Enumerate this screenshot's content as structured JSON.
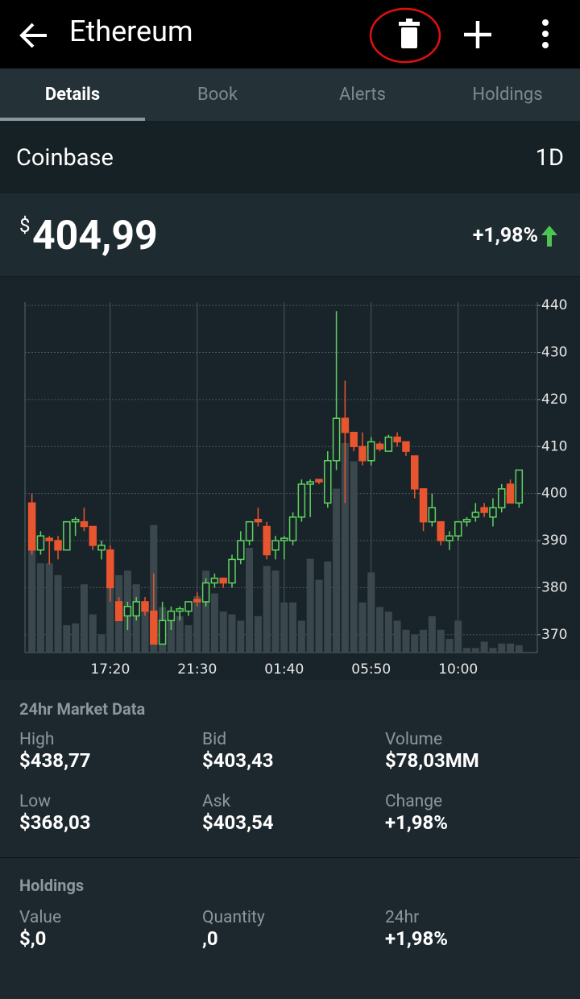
{
  "header": {
    "title": "Ethereum"
  },
  "tabs": [
    "Details",
    "Book",
    "Alerts",
    "Holdings"
  ],
  "exchange": {
    "name": "Coinbase",
    "period": "1D"
  },
  "price": {
    "currency": "$",
    "value": "404,99",
    "change": "+1,98%"
  },
  "chart_data": {
    "type": "candlestick",
    "up_color": "#5ed35e",
    "down_color": "#e8552f",
    "volume_color": "#3a474d",
    "xlim": [
      -0.8,
      58.1
    ],
    "xticks": [
      {
        "value": 9,
        "label": "17:20"
      },
      {
        "value": 19,
        "label": "21:30"
      },
      {
        "value": 29,
        "label": "01:40"
      },
      {
        "value": 39,
        "label": "05:50"
      },
      {
        "value": 49,
        "label": "10:00"
      }
    ],
    "ylim": [
      366.2,
      440.7
    ],
    "yticks": [
      370,
      380,
      390,
      400,
      410,
      420,
      430,
      440
    ],
    "grid": true,
    "open": [
      398,
      388,
      390.5,
      390,
      388,
      394,
      394,
      393,
      388,
      388,
      377,
      374,
      374,
      377,
      375,
      368,
      373,
      375,
      375,
      377.5,
      377,
      381,
      382,
      381,
      386,
      390,
      394.5,
      393,
      388,
      390,
      390,
      395,
      402,
      403,
      398,
      407,
      416,
      413,
      410,
      407,
      410.5,
      409,
      412,
      411,
      408,
      401,
      394,
      394,
      390,
      391,
      394,
      395,
      397,
      395,
      397,
      402,
      398
    ],
    "high": [
      400,
      392,
      391,
      391,
      394,
      395,
      397,
      393,
      390,
      389,
      378,
      377,
      378,
      378,
      383,
      377,
      376,
      376,
      377,
      379,
      382,
      383,
      382,
      387,
      392,
      394,
      397,
      394,
      391,
      391,
      396,
      403,
      403,
      403,
      409,
      438.77,
      424,
      413,
      413,
      412,
      411,
      412.5,
      413,
      411,
      408,
      401,
      400,
      394,
      392,
      394,
      395,
      398,
      398,
      399,
      402,
      403,
      405
    ],
    "low": [
      387,
      387,
      385,
      386,
      388,
      391,
      392,
      388,
      386,
      377,
      373,
      371,
      373,
      374,
      368,
      368,
      371,
      373,
      374,
      376,
      376,
      380,
      380,
      380,
      385,
      389,
      393,
      386,
      386,
      386,
      389,
      394,
      395,
      402,
      397,
      405,
      398,
      409,
      406,
      406,
      409,
      409,
      410,
      408,
      399,
      392,
      393,
      389,
      388,
      390,
      393,
      394,
      395,
      393,
      396,
      398,
      397
    ],
    "close": [
      388,
      391,
      390,
      388,
      394,
      394.5,
      393,
      389,
      389,
      380,
      373,
      376,
      377,
      375,
      368,
      373,
      375,
      375.5,
      377,
      377,
      381,
      382,
      381,
      386,
      390,
      394,
      394,
      387,
      390,
      390.5,
      395,
      402,
      402.5,
      402.5,
      407,
      416,
      413,
      410,
      407,
      411,
      409.5,
      412,
      411,
      409,
      401,
      394,
      397,
      390,
      391,
      394,
      394.5,
      396,
      396,
      397,
      401,
      398,
      405
    ],
    "volume": [
      120,
      98,
      98,
      85,
      30,
      32,
      75,
      42,
      20,
      90,
      85,
      90,
      75,
      55,
      140,
      50,
      45,
      40,
      30,
      62,
      90,
      65,
      45,
      42,
      35,
      115,
      40,
      95,
      90,
      55,
      55,
      35,
      103,
      80,
      100,
      180,
      230,
      210,
      55,
      88,
      50,
      45,
      35,
      25,
      20,
      25,
      40,
      25,
      15,
      35,
      5,
      5,
      12,
      5,
      10,
      10,
      8
    ]
  },
  "market_data": {
    "title": "24hr Market Data",
    "items": [
      {
        "label": "High",
        "value": "$438,77"
      },
      {
        "label": "Bid",
        "value": "$403,43"
      },
      {
        "label": "Volume",
        "value": "$78,03MM"
      },
      {
        "label": "Low",
        "value": "$368,03"
      },
      {
        "label": "Ask",
        "value": "$403,54"
      },
      {
        "label": "Change",
        "value": "+1,98%"
      }
    ]
  },
  "holdings": {
    "title": "Holdings",
    "items": [
      {
        "label": "Value",
        "value": "$,0"
      },
      {
        "label": "Quantity",
        "value": ",0"
      },
      {
        "label": "24hr",
        "value": "+1,98%"
      }
    ]
  }
}
